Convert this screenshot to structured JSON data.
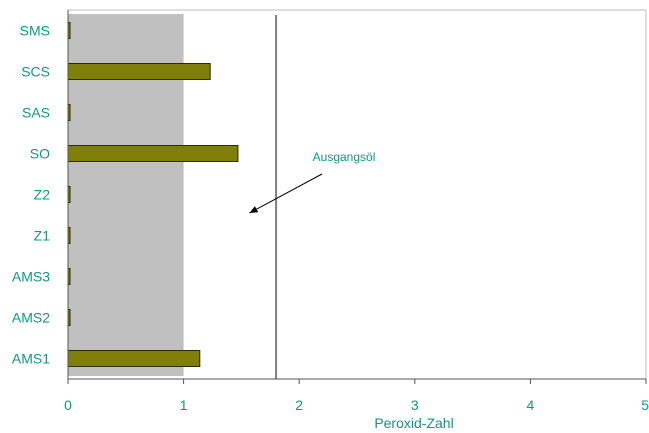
{
  "chart_data": {
    "type": "bar",
    "orientation": "horizontal",
    "categories": [
      "SMS",
      "SCS",
      "SAS",
      "SO",
      "Z2",
      "Z1",
      "AMS3",
      "AMS2",
      "AMS1"
    ],
    "values": [
      0.01,
      1.23,
      0.01,
      1.47,
      0.01,
      0.01,
      0.01,
      0.01,
      1.14
    ],
    "xlim": [
      0,
      5
    ],
    "x_ticks": [
      "0",
      "1",
      "2",
      "3",
      "4",
      "5"
    ],
    "xlabel": "Peroxid-Zahl",
    "ylabel": "",
    "title": "",
    "reference_line": {
      "x": 1.8
    },
    "shaded_region": {
      "x_from": 0,
      "x_to": 1
    },
    "annotation": {
      "text": "Ausgangsöl",
      "arrow_to_x": 1.57
    },
    "grid": false,
    "legend": "none",
    "colors": {
      "bar_fill": "#7f7f0a",
      "bar_stroke": "#2b2b00",
      "label_text": "#0b9a82",
      "shade": "#c0c0c0",
      "ref_line": "#7f7f7f",
      "axis": "#555555"
    }
  }
}
